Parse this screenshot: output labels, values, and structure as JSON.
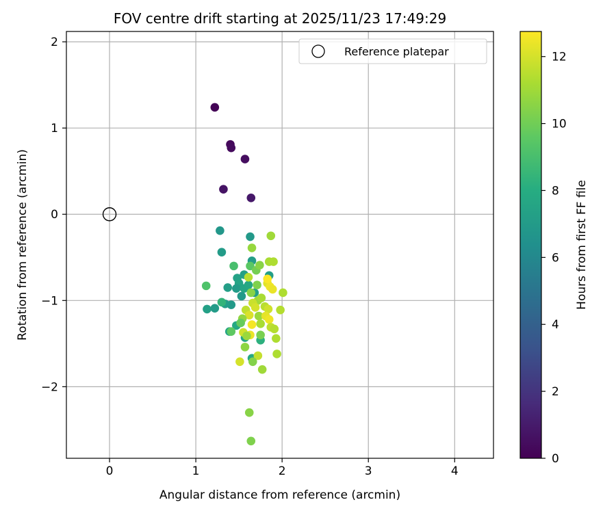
{
  "chart_data": {
    "type": "scatter",
    "title": "FOV centre drift starting at 2025/11/23 17:49:29",
    "xlabel": "Angular distance from reference (arcmin)",
    "ylabel": "Rotation from reference (arcmin)",
    "xlim": [
      -0.5,
      4.45
    ],
    "ylim": [
      -2.83,
      2.12
    ],
    "xticks": [
      0,
      1,
      2,
      3,
      4
    ],
    "xtick_labels": [
      "0",
      "1",
      "2",
      "3",
      "4"
    ],
    "yticks": [
      2,
      1,
      0,
      -1,
      -2
    ],
    "ytick_labels": [
      "2",
      "1",
      "0",
      "−1",
      "−2"
    ],
    "grid": true,
    "legend": {
      "placement": "top-right",
      "entries": [
        "Reference platepar"
      ]
    },
    "reference_point": {
      "label": "Reference platepar",
      "x": 0,
      "y": 0
    },
    "colorbar": {
      "label": "Hours from first FF file",
      "range": [
        0,
        12.75
      ],
      "ticks": [
        0,
        2,
        4,
        6,
        8,
        10,
        12
      ],
      "tick_labels": [
        "0",
        "2",
        "4",
        "6",
        "8",
        "10",
        "12"
      ],
      "colormap": "viridis"
    },
    "points": [
      {
        "x": 1.22,
        "y": 1.24,
        "h": 0.1
      },
      {
        "x": 1.4,
        "y": 0.81,
        "h": 0.3
      },
      {
        "x": 1.41,
        "y": 0.77,
        "h": 0.4
      },
      {
        "x": 1.57,
        "y": 0.64,
        "h": 0.5
      },
      {
        "x": 1.32,
        "y": 0.29,
        "h": 0.7
      },
      {
        "x": 1.64,
        "y": 0.19,
        "h": 0.9
      },
      {
        "x": 1.28,
        "y": -0.19,
        "h": 6.8
      },
      {
        "x": 1.63,
        "y": -0.26,
        "h": 6.9
      },
      {
        "x": 1.3,
        "y": -0.44,
        "h": 7.0
      },
      {
        "x": 1.65,
        "y": -0.54,
        "h": 7.1
      },
      {
        "x": 1.85,
        "y": -0.71,
        "h": 7.2
      },
      {
        "x": 1.56,
        "y": -0.7,
        "h": 7.3
      },
      {
        "x": 1.48,
        "y": -0.74,
        "h": 7.4
      },
      {
        "x": 1.5,
        "y": -0.8,
        "h": 7.5
      },
      {
        "x": 1.37,
        "y": -0.85,
        "h": 7.2
      },
      {
        "x": 1.47,
        "y": -0.86,
        "h": 7.0
      },
      {
        "x": 1.56,
        "y": -0.86,
        "h": 7.6
      },
      {
        "x": 1.61,
        "y": -0.82,
        "h": 7.7
      },
      {
        "x": 1.53,
        "y": -0.95,
        "h": 6.9
      },
      {
        "x": 1.68,
        "y": -0.91,
        "h": 7.3
      },
      {
        "x": 1.41,
        "y": -1.05,
        "h": 6.9
      },
      {
        "x": 1.34,
        "y": -1.04,
        "h": 7.1
      },
      {
        "x": 1.13,
        "y": -1.1,
        "h": 7.3
      },
      {
        "x": 1.22,
        "y": -1.09,
        "h": 7.0
      },
      {
        "x": 1.3,
        "y": -1.02,
        "h": 8.4
      },
      {
        "x": 1.39,
        "y": -1.36,
        "h": 7.5
      },
      {
        "x": 1.47,
        "y": -1.29,
        "h": 7.8
      },
      {
        "x": 1.57,
        "y": -1.43,
        "h": 7.6
      },
      {
        "x": 1.75,
        "y": -1.46,
        "h": 8.2
      },
      {
        "x": 1.65,
        "y": -1.67,
        "h": 7.7
      },
      {
        "x": 1.12,
        "y": -0.83,
        "h": 9.2
      },
      {
        "x": 1.44,
        "y": -0.6,
        "h": 9.0
      },
      {
        "x": 1.63,
        "y": -0.6,
        "h": 9.5
      },
      {
        "x": 1.7,
        "y": -0.65,
        "h": 10.1
      },
      {
        "x": 1.74,
        "y": -0.59,
        "h": 10.5
      },
      {
        "x": 1.65,
        "y": -0.39,
        "h": 10.8
      },
      {
        "x": 1.87,
        "y": -0.25,
        "h": 11.0
      },
      {
        "x": 1.85,
        "y": -0.55,
        "h": 11.2
      },
      {
        "x": 1.9,
        "y": -0.55,
        "h": 11.3
      },
      {
        "x": 1.61,
        "y": -0.73,
        "h": 11.5
      },
      {
        "x": 1.71,
        "y": -0.82,
        "h": 10.3
      },
      {
        "x": 1.83,
        "y": -0.8,
        "h": 12.2
      },
      {
        "x": 1.86,
        "y": -0.84,
        "h": 12.5
      },
      {
        "x": 1.83,
        "y": -0.75,
        "h": 12.7
      },
      {
        "x": 1.89,
        "y": -0.87,
        "h": 12.4
      },
      {
        "x": 2.01,
        "y": -0.91,
        "h": 11.3
      },
      {
        "x": 1.64,
        "y": -0.91,
        "h": 10.5
      },
      {
        "x": 1.72,
        "y": -1.0,
        "h": 11.0
      },
      {
        "x": 1.76,
        "y": -0.97,
        "h": 11.2
      },
      {
        "x": 1.66,
        "y": -1.03,
        "h": 11.8
      },
      {
        "x": 1.69,
        "y": -1.08,
        "h": 12.0
      },
      {
        "x": 1.8,
        "y": -1.07,
        "h": 11.5
      },
      {
        "x": 1.84,
        "y": -1.1,
        "h": 11.9
      },
      {
        "x": 1.98,
        "y": -1.11,
        "h": 11.4
      },
      {
        "x": 1.58,
        "y": -1.11,
        "h": 11.6
      },
      {
        "x": 1.62,
        "y": -1.17,
        "h": 12.1
      },
      {
        "x": 1.73,
        "y": -1.18,
        "h": 10.9
      },
      {
        "x": 1.81,
        "y": -1.18,
        "h": 12.3
      },
      {
        "x": 1.85,
        "y": -1.22,
        "h": 12.5
      },
      {
        "x": 1.54,
        "y": -1.21,
        "h": 10.7
      },
      {
        "x": 1.52,
        "y": -1.26,
        "h": 9.8
      },
      {
        "x": 1.65,
        "y": -1.28,
        "h": 12.6
      },
      {
        "x": 1.75,
        "y": -1.27,
        "h": 11.2
      },
      {
        "x": 1.87,
        "y": -1.31,
        "h": 11.6
      },
      {
        "x": 1.91,
        "y": -1.33,
        "h": 11.4
      },
      {
        "x": 1.55,
        "y": -1.37,
        "h": 11.9
      },
      {
        "x": 1.63,
        "y": -1.4,
        "h": 12.4
      },
      {
        "x": 1.59,
        "y": -1.41,
        "h": 10.9
      },
      {
        "x": 1.75,
        "y": -1.4,
        "h": 10.2
      },
      {
        "x": 1.41,
        "y": -1.36,
        "h": 9.6
      },
      {
        "x": 1.93,
        "y": -1.44,
        "h": 11.3
      },
      {
        "x": 1.57,
        "y": -1.54,
        "h": 10.6
      },
      {
        "x": 1.72,
        "y": -1.64,
        "h": 11.7
      },
      {
        "x": 1.66,
        "y": -1.71,
        "h": 10.4
      },
      {
        "x": 1.51,
        "y": -1.71,
        "h": 12.0
      },
      {
        "x": 1.94,
        "y": -1.62,
        "h": 11.3
      },
      {
        "x": 1.77,
        "y": -1.8,
        "h": 11.0
      },
      {
        "x": 1.62,
        "y": -2.3,
        "h": 10.5
      },
      {
        "x": 1.64,
        "y": -2.63,
        "h": 10.3
      }
    ]
  }
}
